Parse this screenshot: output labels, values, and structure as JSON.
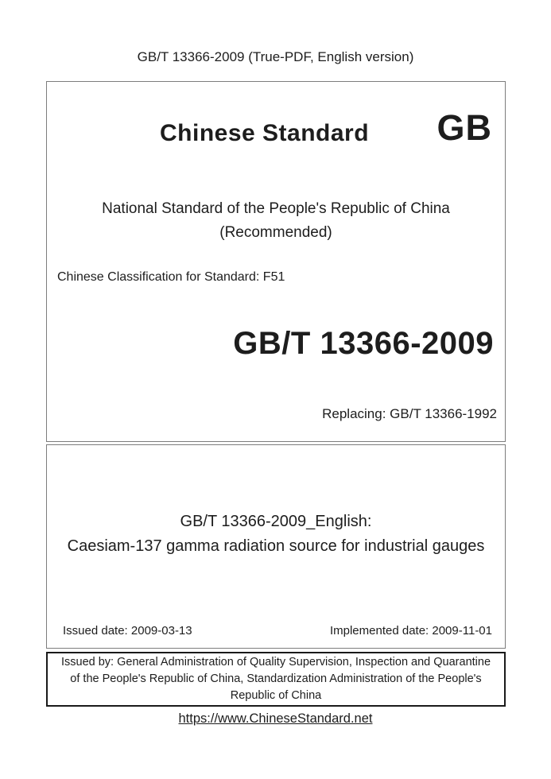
{
  "header": {
    "title": "GB/T 13366-2009 (True-PDF, English version)"
  },
  "cover": {
    "brand": "Chinese Standard",
    "logo": "GB",
    "national_line1": "National Standard of the People's Republic of China",
    "national_line2": "(Recommended)",
    "classification": "Chinese Classification for Standard: F51",
    "standard_number": "GB/T 13366-2009",
    "replacing": "Replacing: GB/T 13366-1992"
  },
  "title_section": {
    "line1": "GB/T 13366-2009_English:",
    "line2": "Caesiam-137 gamma radiation source for industrial gauges",
    "issued_date": "Issued date: 2009-03-13",
    "implemented_date": "Implemented date: 2009-11-01"
  },
  "issuer": {
    "text": "Issued by: General Administration of Quality Supervision, Inspection and Quarantine of the People's Republic of China, Standardization Administration of the People's Republic of China"
  },
  "footer": {
    "link": "https://www.ChineseStandard.net"
  },
  "colors": {
    "text": "#1d1d1d",
    "box_border_gray": "#7d7d7d",
    "box_border_black": "#1a1a1a",
    "background": "#ffffff"
  }
}
